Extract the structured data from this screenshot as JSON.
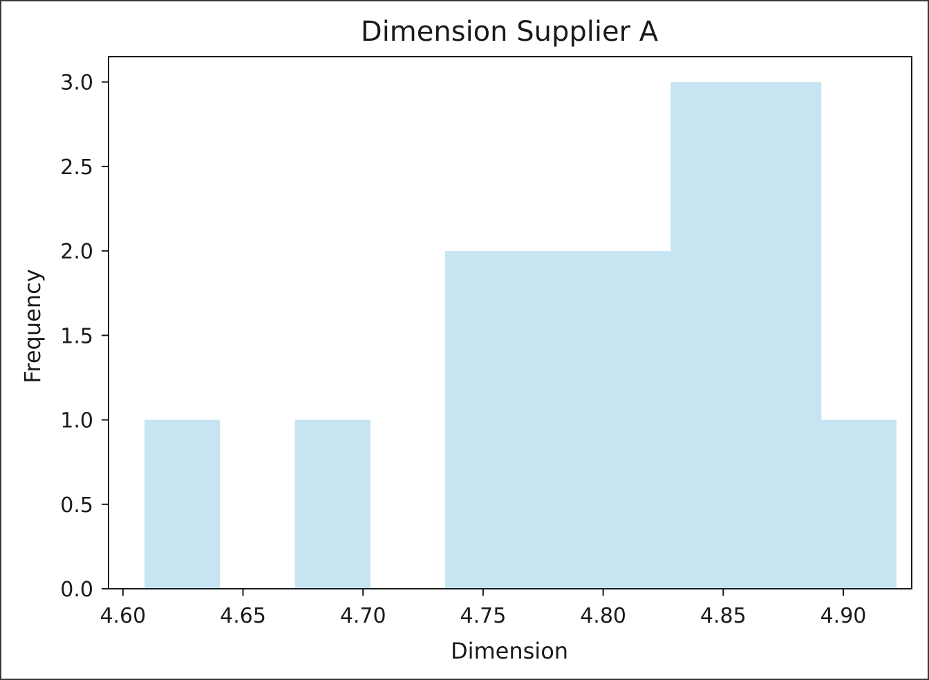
{
  "chart_data": {
    "type": "histogram",
    "title": "Dimension Supplier A",
    "xlabel": "Dimension",
    "ylabel": "Frequency",
    "xlim": [
      4.594,
      4.9285
    ],
    "ylim": [
      0,
      3.15
    ],
    "bins": [
      {
        "x0": 4.609,
        "x1": 4.6403,
        "count": 1
      },
      {
        "x0": 4.6403,
        "x1": 4.6716,
        "count": 0
      },
      {
        "x0": 4.6716,
        "x1": 4.7029,
        "count": 1
      },
      {
        "x0": 4.7029,
        "x1": 4.7342,
        "count": 0
      },
      {
        "x0": 4.7342,
        "x1": 4.7655,
        "count": 2
      },
      {
        "x0": 4.7655,
        "x1": 4.7968,
        "count": 2
      },
      {
        "x0": 4.7968,
        "x1": 4.8281,
        "count": 2
      },
      {
        "x0": 4.8281,
        "x1": 4.8594,
        "count": 3
      },
      {
        "x0": 4.8594,
        "x1": 4.8907,
        "count": 3
      },
      {
        "x0": 4.8907,
        "x1": 4.922,
        "count": 1
      }
    ],
    "bar_color": "#c6e4f2",
    "xticks": [
      4.6,
      4.65,
      4.7,
      4.75,
      4.8,
      4.85,
      4.9
    ],
    "xtick_labels": [
      "4.60",
      "4.65",
      "4.70",
      "4.75",
      "4.80",
      "4.85",
      "4.90"
    ],
    "yticks": [
      0.0,
      0.5,
      1.0,
      1.5,
      2.0,
      2.5,
      3.0
    ],
    "ytick_labels": [
      "0.0",
      "0.5",
      "1.0",
      "1.5",
      "2.0",
      "2.5",
      "3.0"
    ],
    "grid": false,
    "legend": false
  }
}
